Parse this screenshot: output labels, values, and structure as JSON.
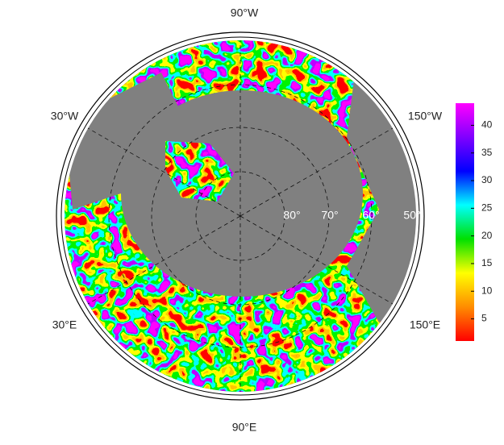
{
  "map": {
    "longitude_labels": [
      "90°W",
      "150°W",
      "150°E",
      "90°E",
      "30°E",
      "30°W"
    ],
    "latitude_labels": [
      "80°",
      "70°",
      "60°",
      "50°"
    ],
    "colorbar": {
      "range": [
        1,
        44
      ],
      "ticks": [
        5,
        10,
        15,
        20,
        25,
        30,
        35,
        40
      ],
      "colors": [
        "#ff0000",
        "#ff8c00",
        "#ffff00",
        "#00e000",
        "#00ffff",
        "#0000ff",
        "#8000ff",
        "#ff00ff"
      ]
    }
  }
}
